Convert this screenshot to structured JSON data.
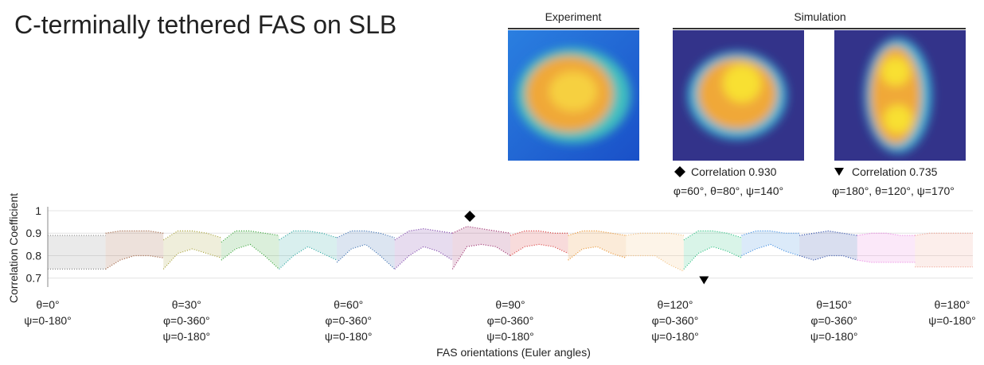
{
  "title": "C-terminally tethered FAS on SLB",
  "panels": {
    "experiment": "Experiment",
    "simulation": "Simulation",
    "matches": [
      {
        "label": "Correlation 0.930",
        "angles": "φ=60°, θ=80°, ψ=140°"
      },
      {
        "label": "Correlation 0.735",
        "angles": "φ=180°, θ=120°, ψ=170°"
      }
    ]
  },
  "chart_data": {
    "type": "band-lines",
    "y_label": "Correlation Coefficient",
    "x_label": "FAS orientations (Euler angles)",
    "ylim": [
      0.66,
      1.0
    ],
    "yticks": [
      0.7,
      0.8,
      0.9,
      1
    ],
    "xlim": [
      0,
      16
    ],
    "grid": true,
    "series": [
      {
        "color": "#8c8c8c",
        "values": [
          0.89,
          0.89,
          0.89,
          0.89,
          0.89
        ],
        "lower": [
          0.74,
          0.74,
          0.74,
          0.74,
          0.74
        ]
      },
      {
        "color": "#9a5b3a",
        "values": [
          0.9,
          0.91,
          0.91,
          0.91,
          0.9
        ],
        "lower": [
          0.74,
          0.78,
          0.8,
          0.8,
          0.79
        ]
      },
      {
        "color": "#a8a23a",
        "values": [
          0.87,
          0.91,
          0.91,
          0.9,
          0.88
        ],
        "lower": [
          0.74,
          0.81,
          0.83,
          0.81,
          0.79
        ]
      },
      {
        "color": "#3aa63a",
        "values": [
          0.86,
          0.91,
          0.91,
          0.9,
          0.89
        ],
        "lower": [
          0.78,
          0.83,
          0.85,
          0.8,
          0.74
        ]
      },
      {
        "color": "#2aa6a0",
        "values": [
          0.87,
          0.91,
          0.91,
          0.9,
          0.88
        ],
        "lower": [
          0.74,
          0.8,
          0.84,
          0.81,
          0.78
        ]
      },
      {
        "color": "#3b6fb0",
        "values": [
          0.88,
          0.91,
          0.91,
          0.9,
          0.88
        ],
        "lower": [
          0.77,
          0.83,
          0.85,
          0.8,
          0.74
        ]
      },
      {
        "color": "#7a3fa8",
        "values": [
          0.87,
          0.91,
          0.92,
          0.91,
          0.9
        ],
        "lower": [
          0.74,
          0.8,
          0.84,
          0.82,
          0.78
        ]
      },
      {
        "color": "#9a2a6a",
        "values": [
          0.9,
          0.93,
          0.92,
          0.91,
          0.9
        ],
        "lower": [
          0.74,
          0.84,
          0.85,
          0.84,
          0.8
        ]
      },
      {
        "color": "#d83a3a",
        "values": [
          0.89,
          0.91,
          0.91,
          0.9,
          0.9
        ],
        "lower": [
          0.8,
          0.84,
          0.85,
          0.84,
          0.81
        ]
      },
      {
        "color": "#e8902a",
        "values": [
          0.89,
          0.91,
          0.91,
          0.9,
          0.89
        ],
        "lower": [
          0.78,
          0.83,
          0.84,
          0.81,
          0.79
        ]
      },
      {
        "color": "#f2c080",
        "values": [
          0.89,
          0.9,
          0.9,
          0.9,
          0.89
        ],
        "lower": [
          0.8,
          0.8,
          0.8,
          0.76,
          0.73
        ]
      },
      {
        "color": "#2ac080",
        "values": [
          0.87,
          0.91,
          0.91,
          0.9,
          0.88
        ],
        "lower": [
          0.74,
          0.81,
          0.84,
          0.82,
          0.79
        ]
      },
      {
        "color": "#3a8ae0",
        "values": [
          0.89,
          0.91,
          0.91,
          0.9,
          0.9
        ],
        "lower": [
          0.8,
          0.83,
          0.85,
          0.82,
          0.8
        ]
      },
      {
        "color": "#2a4aa8",
        "values": [
          0.89,
          0.9,
          0.91,
          0.9,
          0.89
        ],
        "lower": [
          0.8,
          0.78,
          0.8,
          0.8,
          0.78
        ]
      },
      {
        "color": "#e880e0",
        "values": [
          0.89,
          0.9,
          0.9,
          0.89,
          0.89
        ],
        "lower": [
          0.78,
          0.77,
          0.77,
          0.77,
          0.77
        ]
      },
      {
        "color": "#f0a090",
        "values": [
          0.89,
          0.9,
          0.9,
          0.9,
          0.9
        ],
        "lower": [
          0.75,
          0.75,
          0.75,
          0.75,
          0.75
        ]
      }
    ],
    "markers": [
      {
        "shape": "diamond",
        "x": 7.3,
        "y": 0.975
      },
      {
        "shape": "triangle",
        "x": 11.35,
        "y": 0.69
      }
    ],
    "x_annotations": [
      {
        "x": 0.0,
        "lines": [
          "θ=0°",
          "ψ=0-180°"
        ]
      },
      {
        "x": 2.4,
        "lines": [
          "θ=30°",
          "φ=0-360°",
          "ψ=0-180°"
        ]
      },
      {
        "x": 5.2,
        "lines": [
          "θ=60°",
          "φ=0-360°",
          "ψ=0-180°"
        ]
      },
      {
        "x": 8.0,
        "lines": [
          "θ=90°",
          "φ=0-360°",
          "ψ=0-180°"
        ]
      },
      {
        "x": 10.85,
        "lines": [
          "θ=120°",
          "φ=0-360°",
          "ψ=0-180°"
        ]
      },
      {
        "x": 13.6,
        "lines": [
          "θ=150°",
          "φ=0-360°",
          "ψ=0-180°"
        ]
      },
      {
        "x": 15.7,
        "lines": [
          "θ=180°",
          "ψ=0-180°"
        ]
      }
    ]
  }
}
